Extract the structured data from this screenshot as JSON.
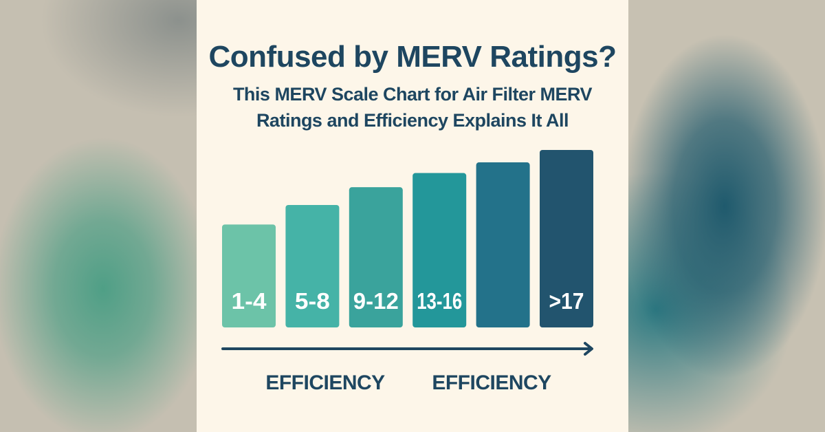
{
  "title": "Confused by MERV Ratings?",
  "subtitle": "This MERV Scale Chart for Air Filter MERV Ratings and Efficiency Explains It All",
  "efficiency_labels": [
    "EFFICIENCY",
    "EFFICIENCY"
  ],
  "colors": {
    "panel": "#fdf6e9",
    "text": "#1e4660",
    "arrow": "#1e4660",
    "bar_label": "#ffffff"
  },
  "chart_data": {
    "type": "bar",
    "categories": [
      "1-4",
      "5-8",
      "9-12",
      "13-16",
      "",
      ">17"
    ],
    "values": [
      58,
      69,
      79,
      87,
      93,
      100
    ],
    "colors": [
      "#6cc3a8",
      "#45b3a7",
      "#3aa39c",
      "#23979a",
      "#23728a",
      "#22546e"
    ],
    "ylim": [
      0,
      100
    ],
    "grid": false,
    "xlabel": "",
    "ylabel": ""
  }
}
